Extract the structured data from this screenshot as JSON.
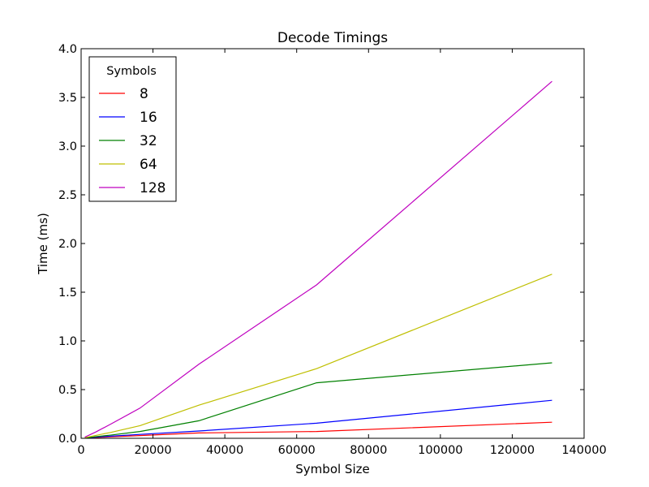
{
  "chart_data": {
    "type": "line",
    "title": "Decode Timings",
    "xlabel": "Symbol Size",
    "ylabel": "Time (ms)",
    "xlim": [
      0,
      140000
    ],
    "ylim": [
      0,
      4.0
    ],
    "xticks": [
      0,
      20000,
      40000,
      60000,
      80000,
      100000,
      120000,
      140000
    ],
    "xtick_labels": [
      "0",
      "20000",
      "40000",
      "60000",
      "80000",
      "100000",
      "120000",
      "140000"
    ],
    "yticks": [
      0,
      0.5,
      1.0,
      1.5,
      2.0,
      2.5,
      3.0,
      3.5,
      4.0
    ],
    "ytick_labels": [
      "0.0",
      "0.5",
      "1.0",
      "1.5",
      "2.0",
      "2.5",
      "3.0",
      "3.5",
      "4.0"
    ],
    "grid": false,
    "legend": {
      "title": "Symbols",
      "placement": "top-left"
    },
    "x": [
      1024,
      2048,
      4096,
      8192,
      16384,
      32768,
      65536,
      131072
    ],
    "series": [
      {
        "name": "8",
        "color": "#ff0000",
        "values": [
          0.002,
          0.004,
          0.008,
          0.015,
          0.028,
          0.055,
          0.07,
          0.165
        ]
      },
      {
        "name": "16",
        "color": "#0000ff",
        "values": [
          0.003,
          0.006,
          0.012,
          0.022,
          0.04,
          0.075,
          0.155,
          0.39
        ]
      },
      {
        "name": "32",
        "color": "#008000",
        "values": [
          0.004,
          0.008,
          0.017,
          0.033,
          0.07,
          0.18,
          0.57,
          0.775
        ]
      },
      {
        "name": "64",
        "color": "#bfbf00",
        "values": [
          0.006,
          0.014,
          0.03,
          0.06,
          0.13,
          0.34,
          0.715,
          1.685
        ]
      },
      {
        "name": "128",
        "color": "#bf00bf",
        "values": [
          0.012,
          0.03,
          0.065,
          0.145,
          0.31,
          0.76,
          1.575,
          3.665
        ]
      }
    ]
  }
}
